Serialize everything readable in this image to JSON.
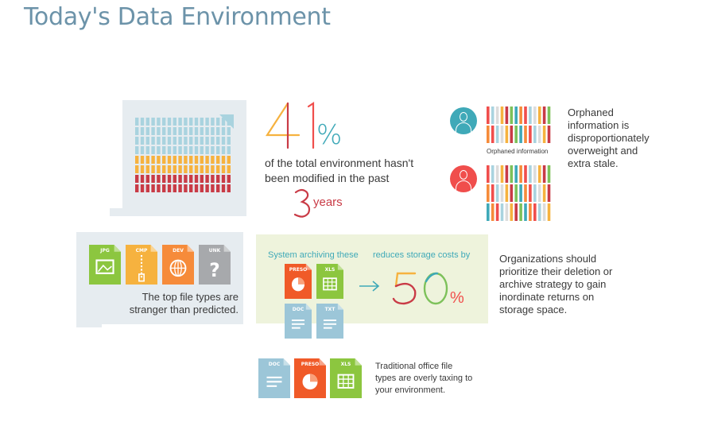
{
  "title": "Today's Data Environment",
  "stat41": {
    "number": "41",
    "percent_sign": "%",
    "text": "of the total environment hasn't been modified in the past",
    "years_number": "3",
    "years_word": "years",
    "bar_rows": [
      {
        "color": "#a9d3df",
        "filled": 18
      },
      {
        "color": "#a9d3df",
        "filled": 18
      },
      {
        "color": "#a9d3df",
        "filled": 18
      },
      {
        "color": "#a9d3df",
        "filled": 18
      },
      {
        "color": "#f6b23f",
        "filled": 18
      },
      {
        "color": "#f6b23f",
        "filled": 18
      },
      {
        "color": "#c93b46",
        "filled": 18
      },
      {
        "color": "#c93b46",
        "filled": 18
      }
    ]
  },
  "orphaned": {
    "label": "Orphaned information",
    "caption": "Orphaned information is disproportionately overweight and extra stale.",
    "colors": [
      "#f04e4c",
      "#f6b23f",
      "#3fa9b8",
      "#a9d3df",
      "#c93b46",
      "#f68b3a",
      "#dcdcdc",
      "#7dc15a"
    ]
  },
  "file_types": {
    "caption_line1": "The top file types are",
    "caption_line2": "stranger than predicted.",
    "items": [
      {
        "label": "JPG",
        "color": "#8cc63f",
        "icon": "image-icon"
      },
      {
        "label": "CMP",
        "color": "#f6b23f",
        "icon": "zipper-icon"
      },
      {
        "label": "DEV",
        "color": "#f68b3a",
        "icon": "globe-icon"
      },
      {
        "label": "UNK",
        "color": "#a7a9ac",
        "icon": "question-icon"
      }
    ]
  },
  "archiving": {
    "head_left": "System archiving these",
    "head_right": "reduces storage costs by",
    "number": "50",
    "percent_sign": "%",
    "caption": "Organizations should prioritize their deletion or archive strategy to gain inordinate returns on storage space.",
    "files": [
      {
        "label": "PRESO",
        "color": "#f05a28",
        "icon": "pie-icon"
      },
      {
        "label": "XLS",
        "color": "#8cc63f",
        "icon": "spreadsheet-icon"
      },
      {
        "label": "DOC",
        "color": "#9cc6d8",
        "icon": "text-lines-icon"
      },
      {
        "label": "TXT",
        "color": "#9cc6d8",
        "icon": "text-lines-icon"
      }
    ]
  },
  "office": {
    "caption_line1": "Traditional office file",
    "caption_line2": "types are overly taxing to",
    "caption_line3": "your environment.",
    "files": [
      {
        "label": "DOC",
        "color": "#9cc6d8",
        "icon": "text-lines-icon"
      },
      {
        "label": "PRESO",
        "color": "#f05a28",
        "icon": "pie-icon"
      },
      {
        "label": "XLS",
        "color": "#8cc63f",
        "icon": "spreadsheet-icon"
      }
    ]
  }
}
